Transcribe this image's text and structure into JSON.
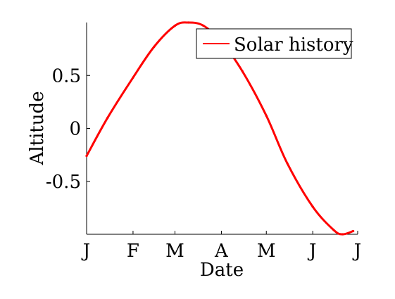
{
  "chart_data": {
    "type": "line",
    "title": "",
    "xlabel": "Date",
    "ylabel": "Altitude",
    "grid": false,
    "legend_position": "top-right",
    "xlim": [
      "Jan 1",
      "Jul 1"
    ],
    "ylim": [
      -1,
      1
    ],
    "x_ticks": [
      "J",
      "F",
      "M",
      "A",
      "M",
      "J",
      "J"
    ],
    "y_ticks": [
      {
        "value": 0.5,
        "label": "0.5"
      },
      {
        "value": 0,
        "label": "0"
      },
      {
        "value": -0.5,
        "label": "-0.5"
      }
    ],
    "series": [
      {
        "name": "Solar history",
        "color": "#ff0000",
        "x": [
          "Jan 1",
          "Jan 15",
          "Feb 1",
          "Feb 15",
          "Mar 1",
          "Mar 10",
          "Mar 20",
          "Apr 1",
          "Apr 15",
          "May 1",
          "May 15",
          "Jun 1",
          "Jun 15",
          "Jun 21",
          "Jun 28"
        ],
        "y": [
          -0.26,
          0.1,
          0.48,
          0.77,
          0.97,
          1.0,
          0.97,
          0.82,
          0.54,
          0.12,
          -0.33,
          -0.74,
          -0.96,
          -1.0,
          -0.97
        ]
      }
    ]
  }
}
